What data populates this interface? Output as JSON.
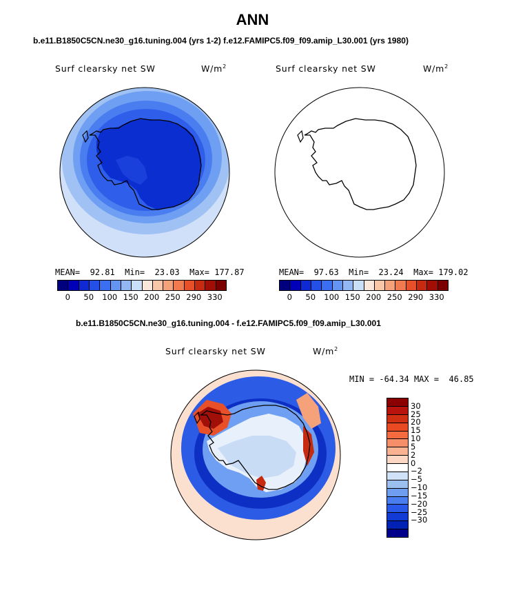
{
  "figure": {
    "title": "ANN",
    "subtitle": "b.e11.B1850C5CN.ne30_g16.tuning.004 (yrs 1-2)  f.e12.FAMIPC5.f09_f09.amip_L30.001 (yrs 1980)",
    "diff_title": "b.e11.B1850C5CN.ne30_g16.tuning.004 - f.e12.FAMIPC5.f09_f09.amip_L30.001"
  },
  "panels": [
    {
      "variable": "Surf clearsky net SW",
      "units_base": "W/m",
      "units_exp": "2",
      "mean_label": "MEAN=",
      "mean": "92.81",
      "min_label": "Min=",
      "min": "23.03",
      "max_label": "Max=",
      "max": "177.87"
    },
    {
      "variable": "Surf clearsky net SW",
      "units_base": "W/m",
      "units_exp": "2",
      "mean_label": "MEAN=",
      "mean": "97.63",
      "min_label": "Min=",
      "min": "23.24",
      "max_label": "Max=",
      "max": "179.02"
    }
  ],
  "diff_panel": {
    "variable": "Surf clearsky net SW",
    "units_base": "W/m",
    "units_exp": "2",
    "min_label": "MIN =",
    "min": "-64.34",
    "max_label": "MAX =",
    "max": "46.85"
  },
  "colorbar_horizontal": {
    "colors": [
      "#00007f",
      "#0000b8",
      "#0f2ad4",
      "#2550e8",
      "#3b6ff2",
      "#6495f2",
      "#92b7f2",
      "#c9dff7",
      "#fbe7d9",
      "#f8c7a8",
      "#f5a27b",
      "#f27a4f",
      "#e8502a",
      "#c62b12",
      "#a00e06",
      "#7a0000"
    ],
    "tick_labels": [
      "0",
      "50",
      "100",
      "150",
      "200",
      "250",
      "290",
      "330"
    ]
  },
  "colorbar_vertical": {
    "colors": [
      "#8b0000",
      "#b8140d",
      "#d12f12",
      "#ea4a21",
      "#f56a3f",
      "#f78e6a",
      "#f9b393",
      "#fcd8c4",
      "#ffffff",
      "#cfe2f7",
      "#9bc0f0",
      "#6f9ef0",
      "#4a7df0",
      "#2a58e8",
      "#123ad4",
      "#0022b4",
      "#00008b"
    ],
    "tick_labels": [
      "30",
      "25",
      "20",
      "15",
      "10",
      "5",
      "2",
      "0",
      "−2",
      "−5",
      "−10",
      "−15",
      "−20",
      "−25",
      "−30"
    ]
  }
}
